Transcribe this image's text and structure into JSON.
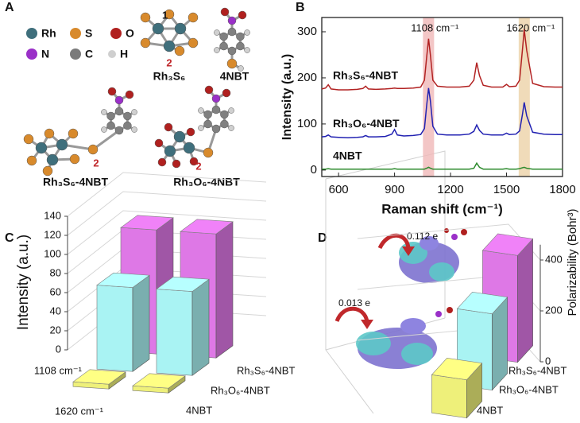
{
  "panel_labels": [
    "A",
    "B",
    "C",
    "D"
  ],
  "structures": {
    "legend": [
      "Rh",
      "S",
      "O",
      "N",
      "C",
      "H"
    ],
    "labels": [
      "Rh₃S₆",
      "4NBT",
      "Rh₃S₆-4NBT",
      "Rh₃O₆-4NBT"
    ],
    "site_labels": [
      "1",
      "2",
      "2",
      "2"
    ]
  },
  "chart_data": [
    {
      "type": "line",
      "x_label": "Raman shift (cm⁻¹)",
      "y_label": "Intensity (a.u.)",
      "x": [
        510,
        530,
        545,
        560,
        600,
        650,
        700,
        730,
        745,
        760,
        800,
        850,
        885,
        900,
        915,
        950,
        1000,
        1040,
        1060,
        1072,
        1082,
        1092,
        1105,
        1130,
        1180,
        1250,
        1300,
        1325,
        1340,
        1355,
        1375,
        1420,
        1480,
        1500,
        1515,
        1550,
        1570,
        1585,
        1595,
        1608,
        1640,
        1700,
        1760,
        1800
      ],
      "series": [
        {
          "name": "Rh₃S₆-4NBT",
          "color": "#b22222",
          "values": [
            176,
            178,
            185,
            176,
            174,
            174,
            175,
            177,
            182,
            176,
            175,
            176,
            177,
            178,
            177,
            177,
            178,
            180,
            195,
            245,
            285,
            250,
            195,
            182,
            180,
            180,
            182,
            195,
            233,
            205,
            184,
            180,
            180,
            186,
            181,
            182,
            195,
            260,
            305,
            260,
            188,
            181,
            180,
            180
          ]
        },
        {
          "name": "Rh₃O₆-4NBT",
          "color": "#2222b2",
          "values": [
            72,
            73,
            76,
            72,
            71,
            70,
            71,
            72,
            75,
            72,
            72,
            73,
            78,
            88,
            76,
            74,
            75,
            77,
            90,
            140,
            178,
            150,
            95,
            78,
            76,
            76,
            78,
            84,
            98,
            86,
            78,
            76,
            76,
            80,
            77,
            78,
            85,
            120,
            147,
            118,
            82,
            78,
            77,
            77
          ]
        },
        {
          "name": "4NBT",
          "color": "#2e8b2e",
          "values": [
            2,
            2,
            3,
            2,
            2,
            2,
            2,
            2,
            2,
            2,
            2,
            2,
            2,
            3,
            2,
            2,
            2,
            2,
            2,
            4,
            6,
            4,
            2,
            2,
            2,
            2,
            2,
            4,
            15,
            6,
            2,
            2,
            2,
            3,
            2,
            2,
            3,
            5,
            6,
            4,
            2,
            2,
            2,
            2
          ]
        }
      ],
      "annotations": [
        {
          "text": "1108 cm⁻¹",
          "x": 1082,
          "color": "#f0b8b8"
        },
        {
          "text": "1620 cm⁻¹",
          "x": 1595,
          "color": "#ecd2a8"
        }
      ],
      "xlim": [
        510,
        1800
      ],
      "ylim": [
        -14,
        331
      ],
      "xticks": [
        600,
        900,
        1200,
        1500,
        1800
      ],
      "yticks": [
        0,
        100,
        200,
        300
      ]
    },
    {
      "type": "bar3d",
      "y_label": "Intensity (a.u.)",
      "categories": [
        "1108 cm⁻¹",
        "1620 cm⁻¹"
      ],
      "series": [
        {
          "name": "4NBT",
          "color": "#eef07a",
          "values": [
            5,
            5
          ]
        },
        {
          "name": "Rh₃O₆-4NBT",
          "color": "#a9f3f3",
          "values": [
            88,
            88
          ]
        },
        {
          "name": "Rh₃S₆-4NBT",
          "color": "#de78e6",
          "values": [
            130,
            130
          ]
        }
      ],
      "ylim": [
        0,
        140
      ],
      "yticks": [
        0,
        20,
        40,
        60,
        80,
        100,
        120,
        140
      ]
    },
    {
      "type": "bar3d",
      "y_label": "Polarizability (Bohr³)",
      "series": [
        {
          "name": "4NBT",
          "color": "#eef07a",
          "values": [
            150
          ]
        },
        {
          "name": "Rh₃O₆-4NBT",
          "color": "#a9f3f3",
          "values": [
            300
          ]
        },
        {
          "name": "Rh₃S₆-4NBT",
          "color": "#de78e6",
          "values": [
            420
          ]
        }
      ],
      "annotations": [
        "0.112 e",
        "0.013 e"
      ],
      "ylim": [
        0,
        460
      ],
      "yticks": [
        0,
        200,
        400
      ]
    }
  ]
}
